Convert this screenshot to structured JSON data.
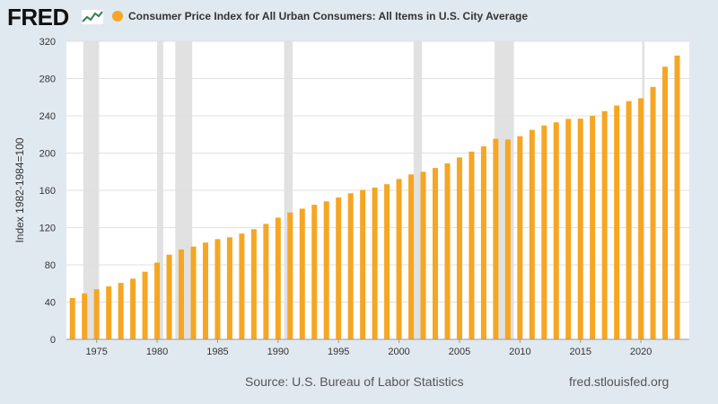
{
  "header": {
    "logo_text": "FRED",
    "title": "Consumer Price Index for All Urban Consumers: All Items in U.S. City Average"
  },
  "footer": {
    "source": "Source: U.S. Bureau of Labor Statistics",
    "url": "fred.stlouisfed.org"
  },
  "colors": {
    "bar": "#f5a623",
    "recession": "#e1e1e1",
    "background": "#e1e9f0",
    "plot": "#ffffff",
    "grid": "#e0e0e0"
  },
  "chart_data": {
    "type": "bar",
    "title": "Consumer Price Index for All Urban Consumers: All Items in U.S. City Average",
    "ylabel": "Index 1982-1984=100",
    "xlabel": "",
    "ylim": [
      0,
      320
    ],
    "xlim": [
      1972.5,
      2024
    ],
    "yticks": [
      0,
      40,
      80,
      120,
      160,
      200,
      240,
      280,
      320
    ],
    "xticks": [
      1975,
      1980,
      1985,
      1990,
      1995,
      2000,
      2005,
      2010,
      2015,
      2020
    ],
    "grid": true,
    "legend": "top-left",
    "series": [
      {
        "name": "Consumer Price Index for All Urban Consumers: All Items in U.S. City Average",
        "x": [
          1973,
          1974,
          1975,
          1976,
          1977,
          1978,
          1979,
          1980,
          1981,
          1982,
          1983,
          1984,
          1985,
          1986,
          1987,
          1988,
          1989,
          1990,
          1991,
          1992,
          1993,
          1994,
          1995,
          1996,
          1997,
          1998,
          1999,
          2000,
          2001,
          2002,
          2003,
          2004,
          2005,
          2006,
          2007,
          2008,
          2009,
          2010,
          2011,
          2012,
          2013,
          2014,
          2015,
          2016,
          2017,
          2018,
          2019,
          2020,
          2021,
          2022,
          2023
        ],
        "values": [
          44.4,
          49.3,
          53.8,
          56.9,
          60.6,
          65.2,
          72.6,
          82.4,
          90.9,
          96.5,
          99.6,
          103.9,
          107.6,
          109.6,
          113.6,
          118.3,
          124.0,
          130.7,
          136.2,
          140.3,
          144.5,
          148.2,
          152.4,
          156.9,
          160.5,
          163.0,
          166.6,
          172.2,
          177.1,
          179.9,
          184.0,
          188.9,
          195.3,
          201.6,
          207.3,
          215.3,
          214.5,
          218.1,
          224.9,
          229.6,
          233.0,
          236.7,
          237.0,
          240.0,
          245.1,
          251.1,
          255.7,
          258.8,
          271.0,
          292.7,
          304.7
        ]
      }
    ],
    "recessions": [
      [
        1973.9,
        1975.2
      ],
      [
        1980.0,
        1980.5
      ],
      [
        1981.5,
        1982.9
      ],
      [
        1990.5,
        1991.2
      ],
      [
        2001.2,
        2001.9
      ],
      [
        2007.9,
        2009.5
      ],
      [
        2020.1,
        2020.3
      ]
    ]
  }
}
